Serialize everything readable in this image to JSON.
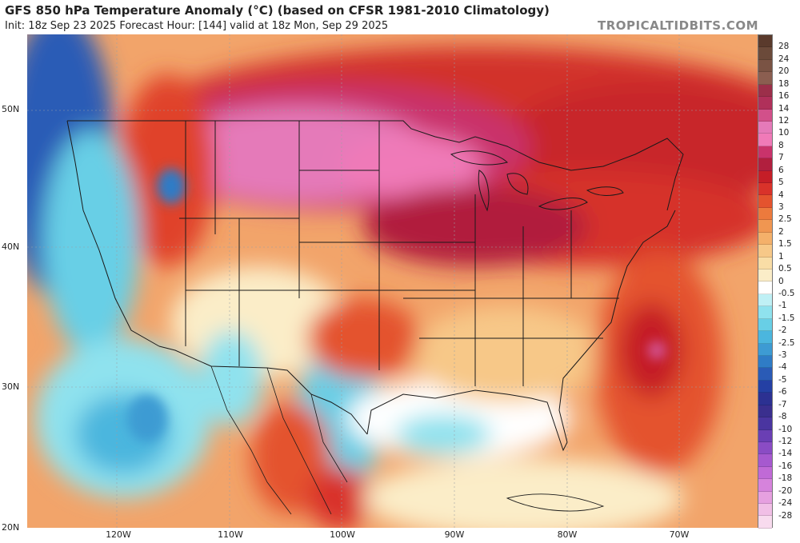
{
  "header": {
    "title": "GFS 850 hPa Temperature Anomaly (°C) (based on CFSR 1981-2010 Climatology)",
    "subtitle": "Init: 18z Sep 23 2025   Forecast Hour: [144]   valid at 18z Mon, Sep 29 2025",
    "credit": "TROPICALTIDBITS.COM"
  },
  "axes": {
    "lat_labels": [
      "50N",
      "40N",
      "30N",
      "20N"
    ],
    "lon_labels": [
      "120W",
      "110W",
      "100W",
      "90W",
      "80W",
      "70W"
    ]
  },
  "colorbar": {
    "levels": [
      "28",
      "24",
      "20",
      "18",
      "16",
      "14",
      "12",
      "10",
      "8",
      "7",
      "6",
      "5",
      "4",
      "3",
      "2.5",
      "2",
      "1.5",
      "1",
      "0.5",
      "0",
      "-0.5",
      "-1",
      "-1.5",
      "-2",
      "-2.5",
      "-3",
      "-4",
      "-5",
      "-6",
      "-7",
      "-8",
      "-10",
      "-12",
      "-14",
      "-16",
      "-18",
      "-20",
      "-24",
      "-28"
    ],
    "colors": [
      "#6b4a3a",
      "#7a5344",
      "#8b5e50",
      "#9c2f4a",
      "#b0305a",
      "#d2508a",
      "#e57ab9",
      "#f07ab8",
      "#c9336b",
      "#b11f3e",
      "#c51e27",
      "#d9322a",
      "#e4532e",
      "#ec7a3d",
      "#f09651",
      "#f4b06a",
      "#f7c888",
      "#f9dda6",
      "#fbedc8",
      "#ffffff",
      "#bff0f5",
      "#8fe2ee",
      "#68cfe6",
      "#4bb6de",
      "#3d9bd3",
      "#2f7cc6",
      "#2a5bb6",
      "#2440a4",
      "#2c3192",
      "#3a2f8e",
      "#4a35a0",
      "#6a3fb4",
      "#8a4cc4",
      "#a659cf",
      "#c06ad6",
      "#d683dc",
      "#e6a0e0",
      "#f1bfe6",
      "#f8dbee"
    ],
    "unit": "°C"
  },
  "map_features": {
    "notable": [
      "warm anomaly over northern Plains and Great Lakes",
      "cold anomaly near Baja California",
      "tropical system east of Carolinas",
      "tropical system off western Mexico"
    ]
  }
}
